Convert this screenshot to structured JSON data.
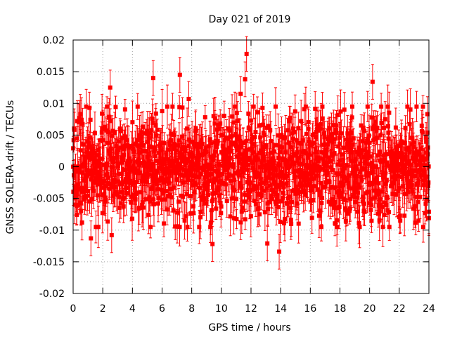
{
  "chart_data": {
    "type": "scatter",
    "title": "Day 021 of 2019",
    "xlabel": "GPS time / hours",
    "ylabel": "GNSS SOLERA-drift / TECUs",
    "xlim": [
      0,
      24
    ],
    "ylim": [
      -0.02,
      0.02
    ],
    "xticks": [
      0,
      2,
      4,
      6,
      8,
      10,
      12,
      14,
      16,
      18,
      20,
      22,
      24
    ],
    "xtick_labels": [
      "0",
      "2",
      "4",
      "6",
      "8",
      "10",
      "12",
      "14",
      "16",
      "18",
      "20",
      "22",
      "24"
    ],
    "yticks": [
      -0.02,
      -0.015,
      -0.01,
      -0.005,
      0,
      0.005,
      0.01,
      0.015,
      0.02
    ],
    "ytick_labels": [
      "-0.02",
      "-0.015",
      "-0.01",
      "-0.005",
      "0",
      "0.005",
      "0.01",
      "0.015",
      "0.02"
    ],
    "grid": true,
    "series": [
      {
        "name": "SOLERA-drift",
        "color": "#ff0000",
        "marker": "square",
        "error_bars": true,
        "typical_spread": 0.005,
        "typical_error": 0.0025,
        "n_points": 1440,
        "notable_points": [
          {
            "x": 0.0,
            "y": 0.0
          },
          {
            "x": 0.6,
            "y": -0.0088
          },
          {
            "x": 1.2,
            "y": -0.0113
          },
          {
            "x": 2.5,
            "y": 0.0125
          },
          {
            "x": 2.6,
            "y": -0.0108
          },
          {
            "x": 5.4,
            "y": 0.014
          },
          {
            "x": 7.2,
            "y": 0.0145
          },
          {
            "x": 7.8,
            "y": 0.0107
          },
          {
            "x": 9.4,
            "y": -0.0122
          },
          {
            "x": 11.3,
            "y": 0.0115
          },
          {
            "x": 11.6,
            "y": 0.0138
          },
          {
            "x": 11.7,
            "y": 0.0178
          },
          {
            "x": 13.1,
            "y": -0.0121
          },
          {
            "x": 13.9,
            "y": -0.0134
          },
          {
            "x": 20.2,
            "y": 0.0134
          },
          {
            "x": 23.9,
            "y": 0.0083
          },
          {
            "x": 24.0,
            "y": -0.0081
          }
        ]
      }
    ]
  }
}
